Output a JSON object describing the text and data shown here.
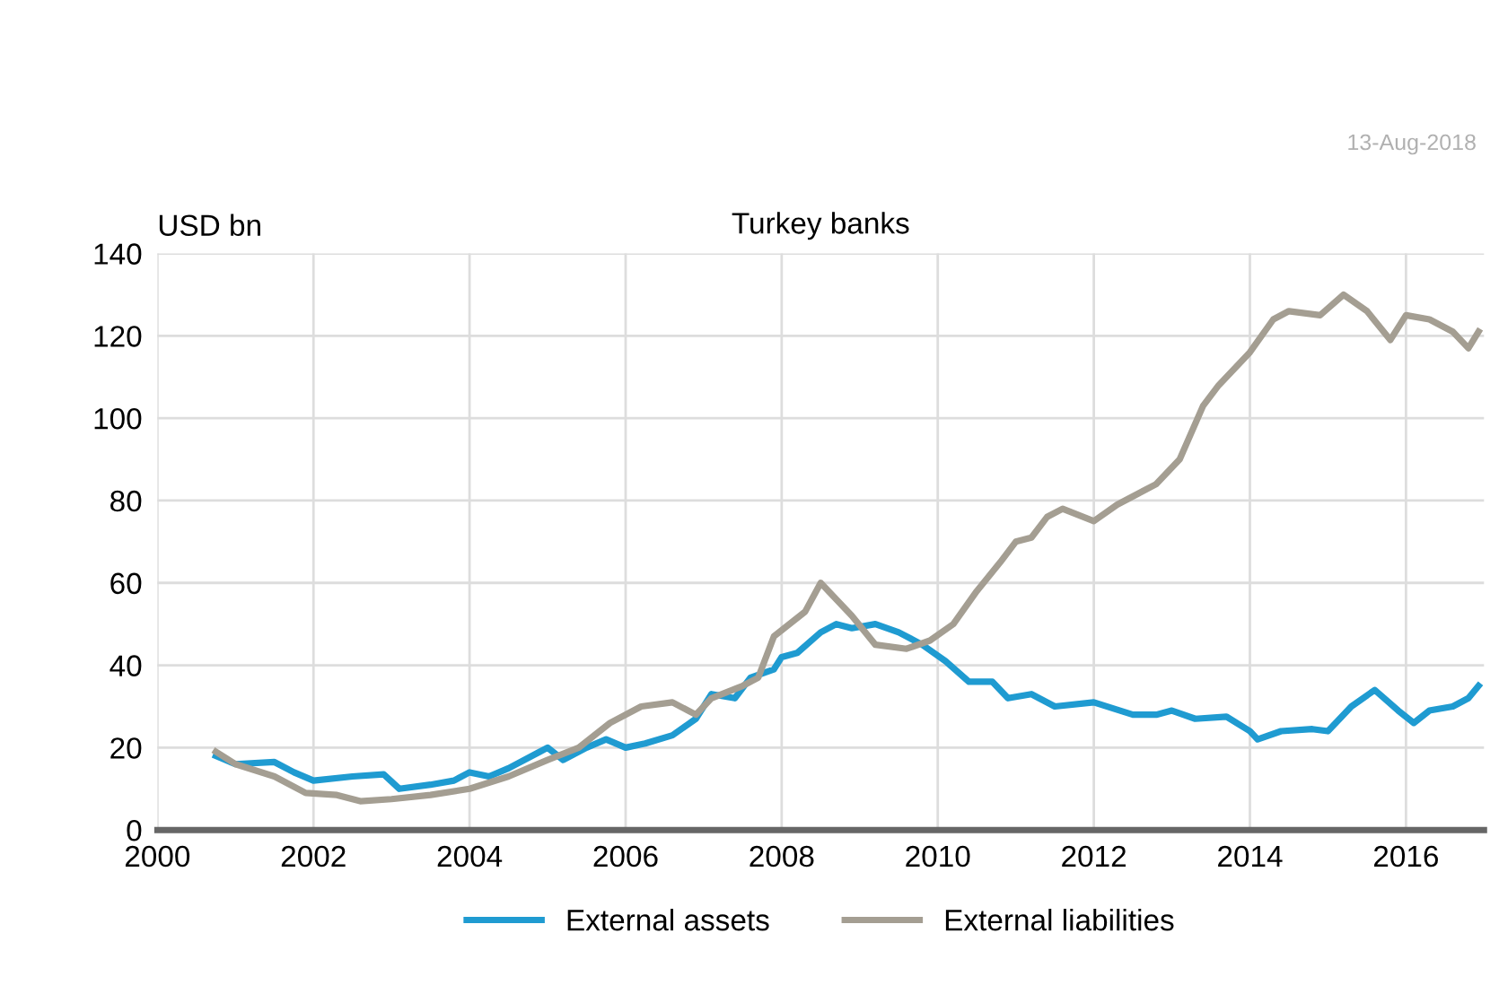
{
  "chart_data": {
    "type": "line",
    "title": "Turkey banks",
    "ylabel": "USD bn",
    "annotations": [
      "13-Aug-2018"
    ],
    "xlim": [
      2000,
      2017
    ],
    "xticks": [
      2000,
      2002,
      2004,
      2006,
      2008,
      2010,
      2012,
      2014,
      2016
    ],
    "ylim": [
      0,
      140
    ],
    "yticks": [
      0,
      20,
      40,
      60,
      80,
      100,
      120,
      140
    ],
    "grid": true,
    "legend": "bottom",
    "marker": "none",
    "line_style": "solid",
    "series": [
      {
        "name": "External assets",
        "color": "#1f9bd1",
        "x": [
          2000.75,
          2001.0,
          2001.5,
          2001.75,
          2002.0,
          2002.5,
          2002.9,
          2003.1,
          2003.5,
          2003.8,
          2004.0,
          2004.25,
          2004.5,
          2004.9,
          2005.0,
          2005.2,
          2005.5,
          2005.75,
          2006.0,
          2006.25,
          2006.6,
          2006.9,
          2007.1,
          2007.4,
          2007.6,
          2007.9,
          2008.0,
          2008.2,
          2008.5,
          2008.7,
          2008.9,
          2009.2,
          2009.5,
          2009.8,
          2010.1,
          2010.4,
          2010.7,
          2010.9,
          2011.2,
          2011.5,
          2012.0,
          2012.5,
          2012.8,
          2013.0,
          2013.3,
          2013.7,
          2014.0,
          2014.1,
          2014.4,
          2014.8,
          2015.0,
          2015.3,
          2015.6,
          2015.9,
          2016.1,
          2016.3,
          2016.6,
          2016.8,
          2016.93
        ],
        "values": [
          18,
          16,
          16.5,
          14,
          12,
          13,
          13.5,
          10,
          11,
          12,
          14,
          13,
          15,
          19,
          20,
          17,
          20,
          22,
          20,
          21,
          23,
          27,
          33,
          32,
          37,
          39,
          42,
          43,
          48,
          50,
          49,
          50,
          48,
          45,
          41,
          36,
          36,
          32,
          33,
          30,
          31,
          28,
          28,
          29,
          27,
          27.5,
          24,
          22,
          24,
          24.5,
          24,
          30,
          34,
          29,
          26,
          29,
          30,
          32,
          35
        ]
      },
      {
        "name": "External liabilities",
        "color": "#a49e92",
        "x": [
          2000.75,
          2001.0,
          2001.5,
          2001.9,
          2002.3,
          2002.6,
          2003.0,
          2003.5,
          2004.0,
          2004.5,
          2005.0,
          2005.4,
          2005.8,
          2006.2,
          2006.6,
          2006.9,
          2007.1,
          2007.5,
          2007.7,
          2007.9,
          2008.3,
          2008.5,
          2008.9,
          2009.2,
          2009.6,
          2009.9,
          2010.2,
          2010.5,
          2010.8,
          2011.0,
          2011.2,
          2011.4,
          2011.6,
          2012.0,
          2012.3,
          2012.8,
          2013.1,
          2013.4,
          2013.6,
          2014.0,
          2014.3,
          2014.5,
          2014.9,
          2015.2,
          2015.5,
          2015.8,
          2016.0,
          2016.3,
          2016.6,
          2016.8,
          2016.93
        ],
        "values": [
          19,
          16,
          13,
          9,
          8.5,
          7,
          7.5,
          8.5,
          10,
          13,
          17,
          20,
          26,
          30,
          31,
          28,
          32,
          35,
          37,
          47,
          53,
          60,
          52,
          45,
          44,
          46,
          50,
          58,
          65,
          70,
          71,
          76,
          78,
          75,
          79,
          84,
          90,
          103,
          108,
          116,
          124,
          126,
          125,
          130,
          126,
          119,
          125,
          124,
          121,
          117,
          121
        ]
      }
    ]
  }
}
